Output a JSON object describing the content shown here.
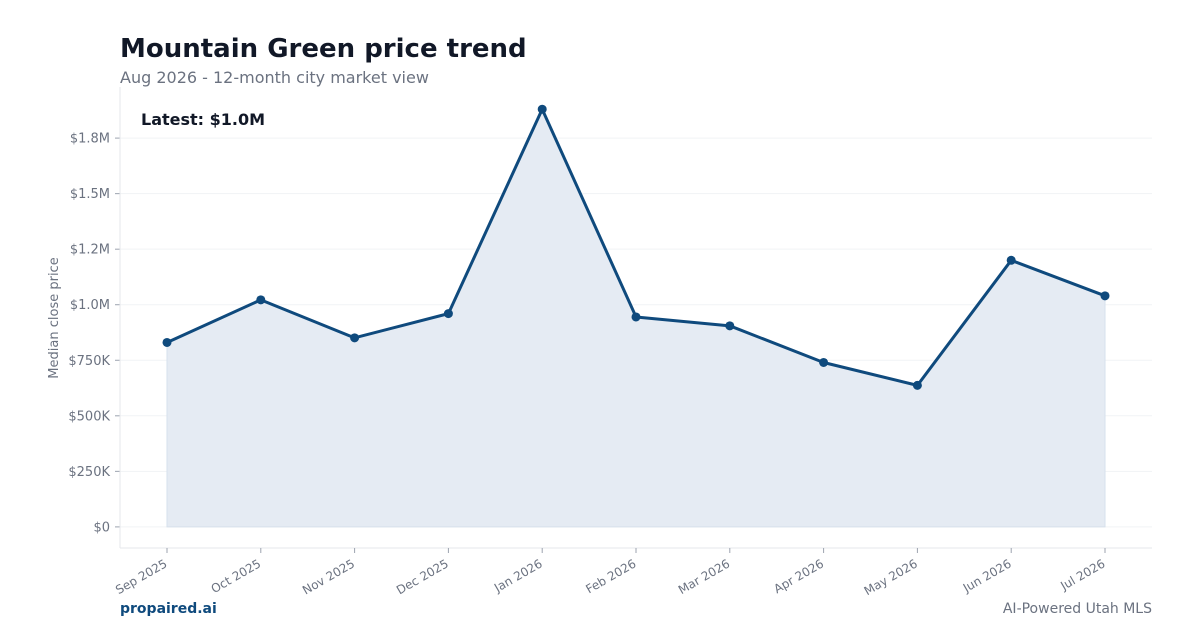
{
  "header": {
    "title": "Mountain Green price trend",
    "subtitle": "Aug 2026 - 12-month city market view"
  },
  "footer": {
    "brand": "propaired.ai",
    "tagline": "AI-Powered Utah MLS"
  },
  "colors": {
    "line": "#0f4a7d",
    "fill": "#e5ebf3",
    "grid": "#f1f3f5",
    "axis": "#e5e7eb"
  },
  "chart_data": {
    "type": "area",
    "annotation": "Latest: $1.0M",
    "ylabel": "Median close price",
    "xlabel": "",
    "categories": [
      "Sep 2025",
      "Oct 2025",
      "Nov 2025",
      "Dec 2025",
      "Jan 2026",
      "Feb 2026",
      "Mar 2026",
      "Apr 2026",
      "May 2026",
      "Jun 2026",
      "Jul 2026"
    ],
    "values": [
      830000,
      1022000,
      851000,
      960000,
      1880000,
      945000,
      905000,
      740000,
      637000,
      1200000,
      1040000
    ],
    "ylim": [
      -95000,
      1980000
    ],
    "yticks": [
      0,
      250000,
      500000,
      750000,
      1000000,
      1250000,
      1500000,
      1750000
    ],
    "ytick_labels": [
      "$0",
      "$250K",
      "$500K",
      "$750K",
      "$1.0M",
      "$1.2M",
      "$1.5M",
      "$1.8M"
    ],
    "grid": true,
    "legend": "none"
  }
}
